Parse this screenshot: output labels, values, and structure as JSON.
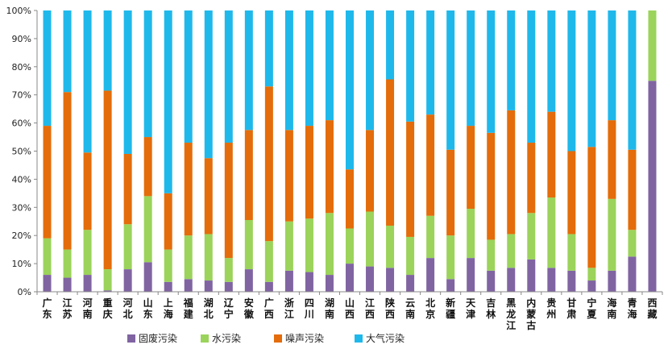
{
  "chart_data": {
    "type": "bar",
    "stacked": true,
    "percent_stacked": true,
    "ylim": [
      0,
      100
    ],
    "y_ticks": [
      "0%",
      "10%",
      "20%",
      "30%",
      "40%",
      "50%",
      "60%",
      "70%",
      "80%",
      "90%",
      "100%"
    ],
    "grid": false,
    "legend_position": "bottom",
    "categories": [
      "广东",
      "江苏",
      "河南",
      "重庆",
      "河北",
      "山东",
      "上海",
      "福建",
      "湖北",
      "辽宁",
      "安徽",
      "广西",
      "浙江",
      "四川",
      "湖南",
      "山西",
      "江西",
      "陕西",
      "云南",
      "北京",
      "新疆",
      "天津",
      "吉林",
      "黑龙江",
      "内蒙古",
      "贵州",
      "甘肃",
      "宁夏",
      "海南",
      "青海",
      "西藏"
    ],
    "series": [
      {
        "name": "固废污染",
        "color": "#8064A2",
        "values": [
          6,
          5,
          6,
          0.5,
          8,
          10.5,
          3.5,
          4.5,
          4,
          3.5,
          8,
          3.5,
          7.5,
          7,
          6,
          10,
          9,
          8.5,
          6,
          12,
          4.5,
          12,
          7.5,
          8.5,
          11.5,
          8.5,
          7.5,
          4,
          7.5,
          12.5,
          75
        ]
      },
      {
        "name": "水污染",
        "color": "#9BD35B",
        "values": [
          13,
          10,
          16,
          7.5,
          16,
          23.5,
          11.5,
          15.5,
          16.5,
          8.5,
          17.5,
          14.5,
          17.5,
          19,
          22,
          12.5,
          19.5,
          15,
          13.5,
          15,
          15.5,
          17.5,
          11,
          12,
          16.5,
          25,
          13,
          4.5,
          25.5,
          9.5,
          25
        ]
      },
      {
        "name": "噪声污染",
        "color": "#E46C0A",
        "values": [
          40,
          56,
          27.5,
          63.5,
          25,
          21,
          20,
          33,
          27,
          41,
          32,
          55,
          32.5,
          33,
          33,
          21,
          29,
          52,
          41,
          36,
          30.5,
          29.5,
          38,
          44,
          25,
          30.5,
          29.5,
          43,
          28,
          28.5,
          0
        ]
      },
      {
        "name": "大气污染",
        "color": "#1FB8EB",
        "values": [
          41,
          29,
          50.5,
          28.5,
          51,
          45,
          65,
          47,
          52.5,
          47,
          42.5,
          27,
          42.5,
          41,
          39,
          56.5,
          42.5,
          24.5,
          39.5,
          37,
          49.5,
          41,
          43.5,
          35.5,
          47,
          36,
          50,
          48.5,
          39,
          49.5,
          0
        ]
      }
    ]
  }
}
